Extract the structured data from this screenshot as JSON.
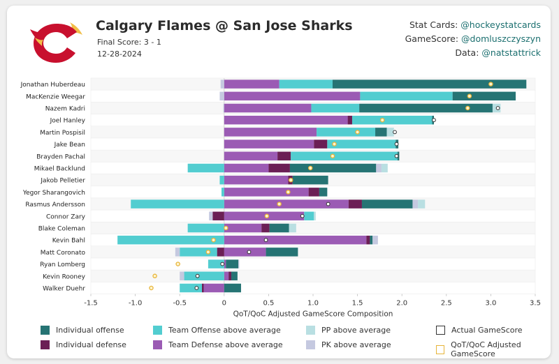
{
  "header": {
    "title": "Calgary Flames @ San Jose Sharks",
    "final_score": "Final Score: 3 - 1",
    "date": "12-28-2024"
  },
  "credits": [
    {
      "label": "Stat Cards:",
      "handle": "@hockeystatcards"
    },
    {
      "label": "GameScore:",
      "handle": "@domluszczyszyn"
    },
    {
      "label": "Data:",
      "handle": "@natstattrick"
    }
  ],
  "logo": {
    "name": "calgary-flames-logo",
    "colors": [
      "#c8102e",
      "#f1be48"
    ]
  },
  "colors": {
    "individual_offense": "#267474",
    "individual_defense": "#6b1f55",
    "team_offense": "#52cdd0",
    "team_defense": "#9b5bb4",
    "pp": "#b9dfe2",
    "pk": "#c5c9e0",
    "actual_marker": "#333333",
    "adjusted_marker": "#e7b43a"
  },
  "chart_data": {
    "type": "bar",
    "orientation": "horizontal-stacked",
    "xlabel": "QoT/QoC Adjusted GameScore Composition",
    "xlim": [
      -1.5,
      3.5
    ],
    "xticks": [
      -1.5,
      -1.0,
      -0.5,
      0,
      0.5,
      1.0,
      1.5,
      2.0,
      2.5,
      3.0,
      3.5
    ],
    "xtick_labels": [
      "-1.5",
      "-1.0",
      "-0.5",
      "0",
      "0.5",
      "1.0",
      "1.5",
      "2.0",
      "2.5",
      "3.0",
      "3.5"
    ],
    "grid": "horizontal row bands",
    "legend_position": "bottom",
    "legend": [
      {
        "key": "individual_offense",
        "label": "Individual offense"
      },
      {
        "key": "team_offense",
        "label": "Team Offense above average"
      },
      {
        "key": "pp",
        "label": "PP above average"
      },
      {
        "key": "actual",
        "label": "Actual GameScore"
      },
      {
        "key": "individual_defense",
        "label": "Individual defense"
      },
      {
        "key": "team_defense",
        "label": "Team Defense above average"
      },
      {
        "key": "pk",
        "label": "PK above average"
      },
      {
        "key": "adjusted",
        "label": "QoT/QoC Adjusted GameScore"
      }
    ],
    "segment_order": [
      "team_defense",
      "individual_defense",
      "team_offense",
      "individual_offense",
      "pk",
      "pp"
    ],
    "players": [
      {
        "name": "Jonathan Huberdeau",
        "team_defense": 0.62,
        "individual_defense": 0,
        "team_offense": 0.6,
        "individual_offense": 2.18,
        "pk": -0.04,
        "pp": 0,
        "actual": null,
        "adjusted": 3.0
      },
      {
        "name": "MacKenzie Weegar",
        "team_defense": 1.53,
        "individual_defense": 0,
        "team_offense": 1.04,
        "individual_offense": 0.71,
        "pk": -0.05,
        "pp": 0,
        "actual": null,
        "adjusted": 2.76
      },
      {
        "name": "Nazem Kadri",
        "team_defense": 0.98,
        "individual_defense": 0,
        "team_offense": 0.54,
        "individual_offense": 1.5,
        "pk": -0.01,
        "pp": 0.09,
        "actual": 3.08,
        "adjusted": 2.74
      },
      {
        "name": "Joel Hanley",
        "team_defense": 1.39,
        "individual_defense": 0.05,
        "team_offense": 0.9,
        "individual_offense": 0.02,
        "pk": 0,
        "pp": 0,
        "actual": 2.36,
        "adjusted": 1.78
      },
      {
        "name": "Martin Pospisil",
        "team_defense": 1.04,
        "individual_defense": 0,
        "team_offense": 0.66,
        "individual_offense": 0.13,
        "pk": 0,
        "pp": 0.08,
        "actual": 1.92,
        "adjusted": 1.5
      },
      {
        "name": "Jake Bean",
        "team_defense": 1.01,
        "individual_defense": 0.15,
        "team_offense": 0.77,
        "individual_offense": 0.03,
        "pk": 0,
        "pp": 0,
        "actual": 1.94,
        "adjusted": 1.24
      },
      {
        "name": "Brayden Pachal",
        "team_defense": 0.6,
        "individual_defense": 0.15,
        "team_offense": 1.2,
        "individual_offense": 0.02,
        "pk": 0,
        "pp": 0,
        "actual": 1.94,
        "adjusted": 1.22
      },
      {
        "name": "Mikael Backlund",
        "team_defense": 0.5,
        "individual_defense": 0.24,
        "team_offense": -0.41,
        "individual_offense": 0.97,
        "pk": 0.06,
        "pp": 0.07,
        "actual": null,
        "adjusted": 0.97
      },
      {
        "name": "Jakob Pelletier",
        "team_defense": 0.72,
        "individual_defense": 0.05,
        "team_offense": -0.05,
        "individual_offense": 0.4,
        "pk": 0,
        "pp": 0,
        "actual": null,
        "adjusted": 0.75
      },
      {
        "name": "Yegor Sharangovich",
        "team_defense": 0.95,
        "individual_defense": 0.12,
        "team_offense": -0.03,
        "individual_offense": 0.09,
        "pk": 0,
        "pp": 0,
        "actual": null,
        "adjusted": 0.72
      },
      {
        "name": "Rasmus Andersson",
        "team_defense": 1.4,
        "individual_defense": 0.15,
        "team_offense": -1.05,
        "individual_offense": 0.57,
        "pk": 0.06,
        "pp": 0.08,
        "actual": 1.17,
        "adjusted": 0.62
      },
      {
        "name": "Connor Zary",
        "team_defense": 0.9,
        "individual_defense": -0.13,
        "team_offense": 0.11,
        "individual_offense": 0,
        "pk": -0.04,
        "pp": 0.02,
        "actual": 0.88,
        "adjusted": 0.48
      },
      {
        "name": "Blake Coleman",
        "team_defense": 0.42,
        "individual_defense": 0.09,
        "team_offense": -0.41,
        "individual_offense": 0.22,
        "pk": 0,
        "pp": 0.08,
        "actual": null,
        "adjusted": 0.02
      },
      {
        "name": "Kevin Bahl",
        "team_defense": 1.6,
        "individual_defense": 0.04,
        "team_offense": -1.2,
        "individual_offense": 0.03,
        "pk": 0.06,
        "pp": 0,
        "actual": 0.47,
        "adjusted": -0.12
      },
      {
        "name": "Matt Coronato",
        "team_defense": 0.47,
        "individual_defense": -0.08,
        "team_offense": -0.42,
        "individual_offense": 0.36,
        "pk": -0.05,
        "pp": 0,
        "actual": 0.28,
        "adjusted": -0.18
      },
      {
        "name": "Ryan Lomberg",
        "team_defense": 0.02,
        "individual_defense": 0,
        "team_offense": -0.18,
        "individual_offense": 0.14,
        "pk": 0.01,
        "pp": 0,
        "actual": -0.02,
        "adjusted": -0.52
      },
      {
        "name": "Kevin Rooney",
        "team_defense": 0.05,
        "individual_defense": 0.03,
        "team_offense": -0.45,
        "individual_offense": 0.07,
        "pk": -0.05,
        "pp": 0,
        "actual": -0.3,
        "adjusted": -0.78
      },
      {
        "name": "Walker Duehr",
        "team_defense": -0.23,
        "individual_defense": -0.02,
        "team_offense": -0.25,
        "individual_offense": 0.19,
        "pk": 0,
        "pp": 0,
        "actual": -0.31,
        "adjusted": -0.82
      }
    ]
  }
}
